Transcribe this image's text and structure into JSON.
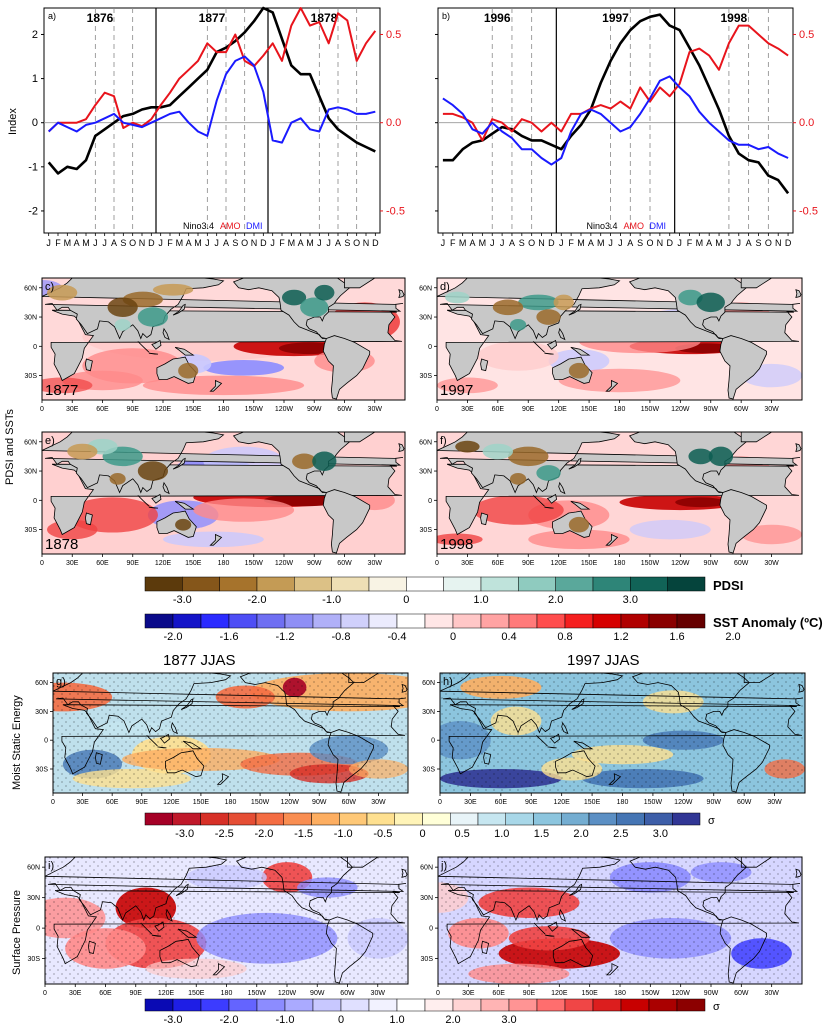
{
  "chart_data": [
    {
      "type": "line",
      "panel": "a)",
      "years": [
        "1876",
        "1877",
        "1878"
      ],
      "months": [
        "J",
        "F",
        "M",
        "A",
        "M",
        "J",
        "J",
        "A",
        "S",
        "O",
        "N",
        "D",
        "J",
        "F",
        "M",
        "A",
        "M",
        "J",
        "J",
        "A",
        "S",
        "O",
        "N",
        "D",
        "J",
        "F",
        "M",
        "A",
        "M",
        "J",
        "J",
        "A",
        "S",
        "O",
        "N",
        "D"
      ],
      "ylabel": "Index",
      "ylim": [
        -2.5,
        2.6
      ],
      "y_ticks": [
        "2",
        "1",
        "0",
        "-1",
        "-2"
      ],
      "y2lim": [
        -0.625,
        0.65
      ],
      "y2_ticks": [
        "0.5",
        "0.0",
        "-0.5"
      ],
      "series": [
        {
          "name": "Nino3.4",
          "color": "#000000",
          "axis": "left",
          "values": [
            -0.9,
            -1.15,
            -1.0,
            -1.05,
            -0.85,
            -0.3,
            -0.15,
            0.0,
            0.15,
            0.2,
            0.3,
            0.35,
            0.35,
            0.4,
            0.6,
            0.8,
            1.0,
            1.2,
            1.6,
            1.7,
            1.85,
            2.05,
            2.3,
            2.6,
            2.5,
            1.9,
            1.3,
            1.1,
            1.1,
            0.6,
            0.1,
            -0.15,
            -0.3,
            -0.45,
            -0.55,
            -0.65
          ]
        },
        {
          "name": "AMO",
          "color": "#e8141c",
          "axis": "left2",
          "values": [
            -0.05,
            0.0,
            0.0,
            0.0,
            0.02,
            0.1,
            0.17,
            0.15,
            -0.03,
            0.0,
            -0.02,
            0.02,
            0.1,
            0.17,
            0.25,
            0.3,
            0.35,
            0.45,
            0.4,
            0.4,
            0.5,
            0.35,
            0.32,
            0.38,
            0.45,
            0.35,
            0.55,
            0.65,
            0.55,
            0.57,
            0.45,
            0.62,
            0.58,
            0.35,
            0.45,
            0.52
          ]
        },
        {
          "name": "DMI",
          "color": "#1a1aff",
          "axis": "left",
          "values": [
            -0.2,
            0.0,
            -0.1,
            -0.2,
            -0.05,
            0.0,
            0.1,
            0.2,
            0.0,
            -0.05,
            -0.1,
            0.0,
            0.1,
            0.2,
            0.25,
            0.0,
            -0.2,
            -0.3,
            0.5,
            1.1,
            1.4,
            1.5,
            1.3,
            0.7,
            -0.4,
            -0.45,
            0.0,
            0.1,
            -0.15,
            -0.2,
            0.3,
            0.35,
            0.3,
            0.2,
            0.2,
            0.25
          ]
        }
      ]
    },
    {
      "type": "line",
      "panel": "b)",
      "years": [
        "1996",
        "1997",
        "1998"
      ],
      "months": [
        "J",
        "F",
        "M",
        "A",
        "M",
        "J",
        "J",
        "A",
        "S",
        "O",
        "N",
        "D",
        "J",
        "F",
        "M",
        "A",
        "M",
        "J",
        "J",
        "A",
        "S",
        "O",
        "N",
        "D",
        "J",
        "F",
        "M",
        "A",
        "M",
        "J",
        "J",
        "A",
        "S",
        "O",
        "N",
        "D"
      ],
      "y2lim": [
        -0.625,
        0.65
      ],
      "y2_ticks": [
        "0.5",
        "0.0",
        "-0.5"
      ],
      "series": [
        {
          "name": "Nino3.4",
          "color": "#000000",
          "axis": "left",
          "values": [
            -0.85,
            -0.85,
            -0.6,
            -0.45,
            -0.4,
            -0.25,
            -0.1,
            -0.15,
            -0.3,
            -0.4,
            -0.4,
            -0.5,
            -0.6,
            -0.3,
            -0.05,
            0.3,
            0.9,
            1.4,
            1.8,
            2.1,
            2.3,
            2.4,
            2.45,
            2.2,
            2.1,
            1.7,
            1.3,
            0.8,
            0.3,
            -0.3,
            -0.7,
            -0.85,
            -0.9,
            -1.2,
            -1.3,
            -1.6
          ]
        },
        {
          "name": "AMO",
          "color": "#e8141c",
          "axis": "left2",
          "values": [
            0.05,
            0.05,
            0.03,
            0.0,
            -0.1,
            0.02,
            0.0,
            -0.05,
            0.02,
            0.0,
            -0.05,
            0.0,
            -0.05,
            0.05,
            0.05,
            0.08,
            0.1,
            0.08,
            0.12,
            0.08,
            0.2,
            0.12,
            0.2,
            0.15,
            0.22,
            0.4,
            0.42,
            0.38,
            0.3,
            0.45,
            0.55,
            0.55,
            0.5,
            0.45,
            0.42,
            0.38
          ]
        },
        {
          "name": "DMI",
          "color": "#1a1aff",
          "axis": "left",
          "values": [
            0.55,
            0.4,
            0.2,
            -0.15,
            -0.25,
            0.0,
            -0.2,
            -0.35,
            -0.6,
            -0.6,
            -0.8,
            -0.95,
            -0.8,
            -0.2,
            0.2,
            0.3,
            0.2,
            0.0,
            -0.2,
            -0.1,
            0.2,
            0.55,
            0.95,
            1.05,
            0.8,
            0.6,
            0.25,
            0.0,
            -0.2,
            -0.4,
            -0.5,
            -0.5,
            -0.6,
            -0.55,
            -0.7,
            -0.8
          ]
        }
      ]
    }
  ],
  "legend": {
    "nino": "Nino3.4",
    "amo": "AMO",
    "dmi": "DMI"
  },
  "maps": {
    "row_label_1": "PDSI and SSTs",
    "c": {
      "panel": "c)",
      "year": "1877"
    },
    "d": {
      "panel": "d)",
      "year": "1997"
    },
    "e": {
      "panel": "e)",
      "year": "1878"
    },
    "f": {
      "panel": "f)",
      "year": "1998"
    },
    "g": {
      "panel": "g)",
      "title": "1877 JJAS"
    },
    "h": {
      "panel": "h)",
      "title": "1997 JJAS"
    },
    "i": {
      "panel": "i)"
    },
    "j": {
      "panel": "j)"
    },
    "row_label_2": "Moist Static Energy",
    "row_label_3": "Surface Pressure",
    "lat_ticks": [
      "60N",
      "30N",
      "0",
      "30S"
    ],
    "lon_ticks": [
      "0",
      "30E",
      "60E",
      "90E",
      "120E",
      "150E",
      "180",
      "150W",
      "120W",
      "90W",
      "60W",
      "30W"
    ]
  },
  "colorbars": {
    "pdsi": {
      "label": "PDSI",
      "ticks": [
        "-3.0",
        "-2.0",
        "-1.0",
        "0",
        "1.0",
        "2.0",
        "3.0"
      ],
      "colors": [
        "#5c3a0c",
        "#85561a",
        "#a6732c",
        "#c49b55",
        "#dcc186",
        "#eedfb5",
        "#f8f3e4",
        "#ffffff",
        "#e6f3f0",
        "#bfe3db",
        "#8fcbbf",
        "#5aa89b",
        "#2e8578",
        "#116357",
        "#05443c"
      ]
    },
    "sst": {
      "label": "SST Anomaly (ºC)",
      "ticks": [
        "-2.0",
        "-1.6",
        "-1.2",
        "-0.8",
        "-0.4",
        "0",
        "0.4",
        "0.8",
        "1.2",
        "1.6",
        "2.0"
      ],
      "colors": [
        "#0a0a8a",
        "#1414c8",
        "#2b2bff",
        "#4e4ef5",
        "#6f6ff2",
        "#8f8ff5",
        "#b0b0f8",
        "#d0d0fb",
        "#ebebfd",
        "#ffffff",
        "#ffe6e6",
        "#ffc7c7",
        "#ffa3a3",
        "#ff7a7a",
        "#ff4d4d",
        "#f51f1f",
        "#d60000",
        "#b00000",
        "#8a0000",
        "#660000"
      ]
    },
    "mse": {
      "sigma": "σ",
      "ticks": [
        "-3.0",
        "-2.5",
        "-2.0",
        "-1.5",
        "-1.0",
        "-0.5",
        "0",
        "0.5",
        "1.0",
        "1.5",
        "2.0",
        "2.5",
        "3.0"
      ],
      "colors": [
        "#a50026",
        "#c0182a",
        "#d73027",
        "#e54e35",
        "#f46d43",
        "#f98e52",
        "#fdae61",
        "#fec877",
        "#fee090",
        "#fff4b8",
        "#ffffd8",
        "#e8f4f8",
        "#c6e6f0",
        "#a8d7e8",
        "#8cc5de",
        "#74add1",
        "#5b8fc4",
        "#4575b4",
        "#3d5ea8",
        "#313695"
      ]
    },
    "sp": {
      "sigma": "σ",
      "ticks": [
        "-3.0",
        "-2.0",
        "-1.0",
        "0",
        "1.0",
        "2.0",
        "3.0"
      ],
      "colors": [
        "#0a0ab4",
        "#1e1ee6",
        "#3c3cff",
        "#6464ff",
        "#8c8cff",
        "#aaaaff",
        "#c8c8ff",
        "#e0e0ff",
        "#f2f2ff",
        "#ffffff",
        "#ffeeee",
        "#ffd4d4",
        "#ffb4b4",
        "#ff9494",
        "#ff6e6e",
        "#f04646",
        "#dc1e1e",
        "#c80000",
        "#aa0000",
        "#8c0000"
      ]
    }
  }
}
